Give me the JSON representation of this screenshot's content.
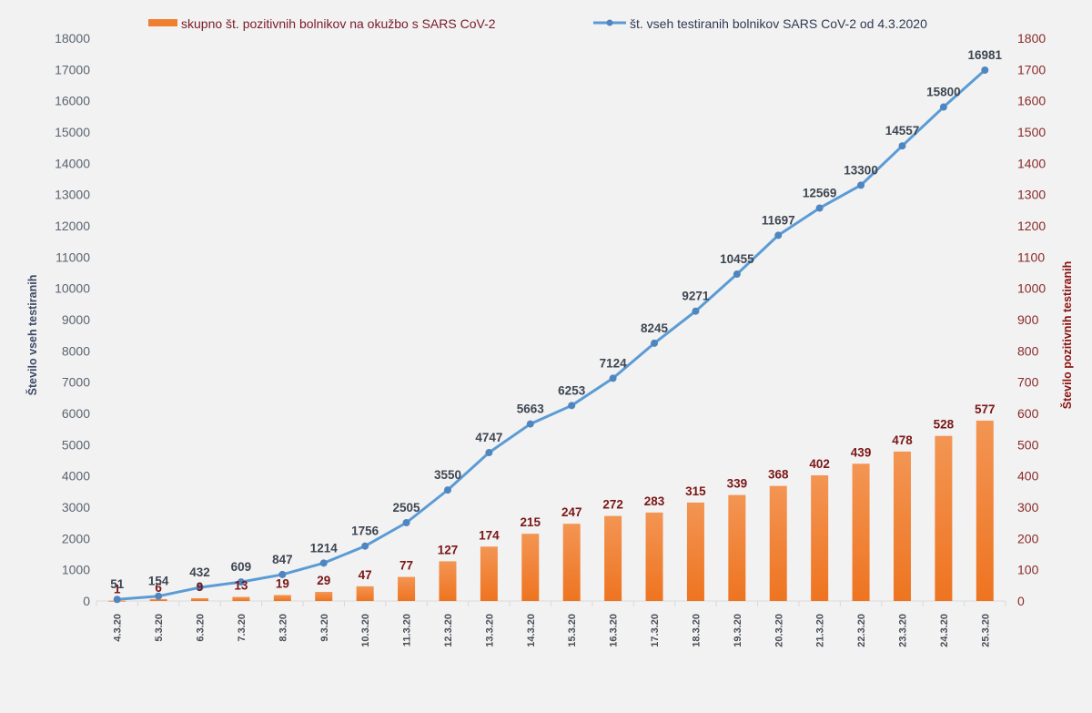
{
  "chart_data": {
    "type": "bar+line",
    "categories": [
      "4.3.20",
      "5.3.20",
      "6.3.20",
      "7.3.20",
      "8.3.20",
      "9.3.20",
      "10.3.20",
      "11.3.20",
      "12.3.20",
      "13.3.20",
      "14.3.20",
      "15.3.20",
      "16.3.20",
      "17.3.20",
      "18.3.20",
      "19.3.20",
      "20.3.20",
      "21.3.20",
      "22.3.20",
      "23.3.20",
      "24.3.20",
      "25.3.20"
    ],
    "series": [
      {
        "name": "skupno št. pozitivnih bolnikov na okužbo s SARS CoV-2",
        "type": "bar",
        "axis": "right",
        "color": "#f08030",
        "values": [
          1,
          6,
          9,
          13,
          19,
          29,
          47,
          77,
          127,
          174,
          215,
          247,
          272,
          283,
          315,
          339,
          368,
          402,
          439,
          478,
          528,
          577
        ]
      },
      {
        "name": "št. vseh testiranih bolnikov SARS CoV-2 od 4.3.2020",
        "type": "line",
        "axis": "left",
        "color": "#5b9bd5",
        "values": [
          51,
          154,
          432,
          609,
          847,
          1214,
          1756,
          2505,
          3550,
          4747,
          5663,
          6253,
          7124,
          8245,
          9271,
          10455,
          11697,
          12569,
          13300,
          14557,
          15800,
          16981
        ]
      }
    ],
    "ylabel_left": "Število vseh testiranih",
    "ylabel_right": "Število pozitivnih testiranih",
    "ylim_left": [
      0,
      18000
    ],
    "ylim_right": [
      0,
      1800
    ],
    "yticks_left": [
      "0",
      "1000",
      "2000",
      "3000",
      "4000",
      "5000",
      "6000",
      "7000",
      "8000",
      "9000",
      "10000",
      "11000",
      "12000",
      "13000",
      "14000",
      "15000",
      "16000",
      "17000",
      "18000"
    ],
    "yticks_right": [
      "0",
      "100",
      "200",
      "300",
      "400",
      "500",
      "600",
      "700",
      "800",
      "900",
      "1000",
      "1100",
      "1200",
      "1300",
      "1400",
      "1500",
      "1600",
      "1700",
      "1800"
    ],
    "legend_position": "top",
    "grid": false
  }
}
